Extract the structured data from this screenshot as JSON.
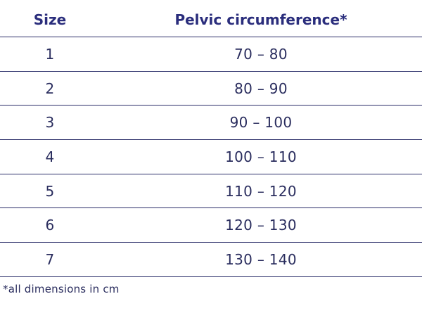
{
  "table": {
    "headers": {
      "size": "Size",
      "pelvic": "Pelvic circumference*"
    },
    "rows": [
      {
        "size": "1",
        "range": "70 – 80"
      },
      {
        "size": "2",
        "range": "80 – 90"
      },
      {
        "size": "3",
        "range": "90 – 100"
      },
      {
        "size": "4",
        "range": "100 – 110"
      },
      {
        "size": "5",
        "range": "110 – 120"
      },
      {
        "size": "6",
        "range": "120 – 130"
      },
      {
        "size": "7",
        "range": "130 – 140"
      }
    ]
  },
  "footnote": "*all dimensions in cm",
  "colors": {
    "header_text": "#2a2d7c",
    "body_text": "#2a2d5e",
    "rule": "#2c2f6a",
    "background": "#ffffff"
  }
}
